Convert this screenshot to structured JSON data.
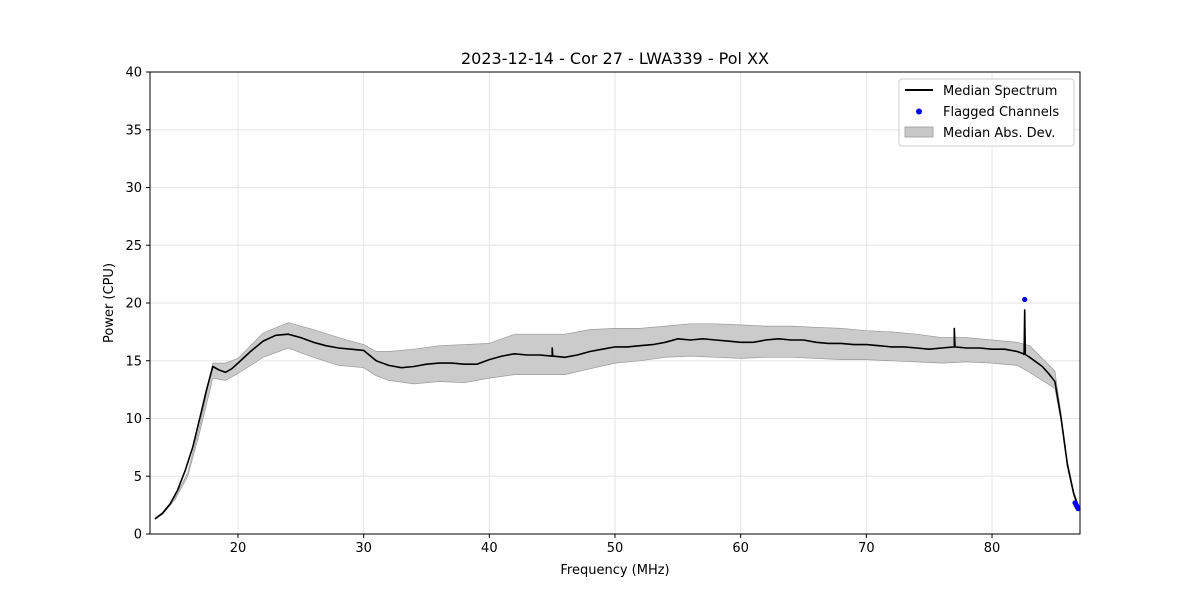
{
  "chart_data": {
    "type": "line",
    "title": "2023-12-14 - Cor 27 - LWA339 - Pol XX",
    "xlabel": "Frequency (MHz)",
    "ylabel": "Power (CPU)",
    "xlim": [
      13,
      87
    ],
    "ylim": [
      0,
      40
    ],
    "xticks": [
      20,
      30,
      40,
      50,
      60,
      70,
      80
    ],
    "yticks": [
      0,
      5,
      10,
      15,
      20,
      25,
      30,
      35,
      40
    ],
    "grid": true,
    "legend_position": "top-right",
    "colors": {
      "median": "#000000",
      "flagged": "#0000ff",
      "mad_fill": "#c8c8c8",
      "mad_edge": "#9a9a9a"
    },
    "series": [
      {
        "name": "Median Spectrum",
        "kind": "line",
        "x": [
          13.4,
          14.0,
          14.6,
          15.2,
          15.8,
          16.4,
          17.0,
          17.5,
          18.0,
          18.5,
          19.0,
          19.5,
          20.0,
          21.0,
          22.0,
          23.0,
          24.0,
          25.0,
          26.0,
          27.0,
          28.0,
          29.0,
          30.0,
          31.0,
          32.0,
          33.0,
          34.0,
          35.0,
          36.0,
          37.0,
          38.0,
          39.0,
          40.0,
          41.0,
          42.0,
          43.0,
          44.0,
          45.0,
          46.0,
          47.0,
          48.0,
          49.0,
          50.0,
          51.0,
          52.0,
          53.0,
          54.0,
          55.0,
          56.0,
          57.0,
          58.0,
          59.0,
          60.0,
          61.0,
          62.0,
          63.0,
          64.0,
          65.0,
          66.0,
          67.0,
          68.0,
          69.0,
          70.0,
          71.0,
          72.0,
          73.0,
          74.0,
          75.0,
          76.0,
          77.0,
          78.0,
          79.0,
          80.0,
          81.0,
          82.0,
          82.5,
          83.0,
          84.0,
          84.5,
          85.0,
          85.5,
          86.0,
          86.5,
          86.9
        ],
        "y": [
          1.3,
          1.8,
          2.6,
          3.8,
          5.5,
          7.5,
          10.2,
          12.5,
          14.5,
          14.2,
          14.0,
          14.3,
          14.8,
          15.8,
          16.7,
          17.2,
          17.3,
          17.0,
          16.6,
          16.3,
          16.1,
          16.0,
          15.9,
          15.0,
          14.6,
          14.4,
          14.5,
          14.7,
          14.8,
          14.8,
          14.7,
          14.7,
          15.1,
          15.4,
          15.6,
          15.5,
          15.5,
          15.4,
          15.3,
          15.5,
          15.8,
          16.0,
          16.2,
          16.2,
          16.3,
          16.4,
          16.6,
          16.9,
          16.8,
          16.9,
          16.8,
          16.7,
          16.6,
          16.6,
          16.8,
          16.9,
          16.8,
          16.8,
          16.6,
          16.5,
          16.5,
          16.4,
          16.4,
          16.3,
          16.2,
          16.2,
          16.1,
          16.0,
          16.1,
          16.2,
          16.1,
          16.1,
          16.0,
          16.0,
          15.8,
          15.6,
          15.3,
          14.5,
          13.9,
          13.2,
          10.0,
          6.0,
          3.5,
          2.3
        ]
      },
      {
        "name": "Flagged Channels",
        "kind": "scatter",
        "x": [
          82.6,
          86.6,
          86.7,
          86.75,
          86.8,
          86.85
        ],
        "y": [
          20.3,
          2.7,
          2.5,
          2.4,
          2.3,
          2.2
        ]
      },
      {
        "name": "Median Abs. Dev.",
        "kind": "band",
        "x": [
          13.4,
          14.0,
          15.0,
          16.0,
          17.0,
          18.0,
          19.0,
          20.0,
          22.0,
          24.0,
          26.0,
          28.0,
          30.0,
          31.0,
          32.0,
          34.0,
          36.0,
          38.0,
          40.0,
          42.0,
          44.0,
          46.0,
          48.0,
          50.0,
          52.0,
          54.0,
          56.0,
          58.0,
          60.0,
          62.0,
          64.0,
          66.0,
          68.0,
          70.0,
          72.0,
          74.0,
          76.0,
          78.0,
          80.0,
          82.0,
          83.0,
          84.0,
          85.0,
          85.5,
          86.0,
          86.5,
          86.9
        ],
        "lower": [
          1.3,
          1.7,
          3.0,
          5.0,
          9.0,
          13.5,
          13.3,
          13.9,
          15.3,
          16.1,
          15.3,
          14.6,
          14.4,
          13.7,
          13.3,
          13.0,
          13.2,
          13.1,
          13.5,
          13.8,
          13.8,
          13.8,
          14.3,
          14.8,
          15.0,
          15.3,
          15.4,
          15.3,
          15.2,
          15.3,
          15.3,
          15.2,
          15.1,
          15.1,
          15.0,
          14.9,
          14.8,
          14.9,
          14.8,
          14.6,
          14.0,
          13.3,
          12.6,
          9.8,
          5.8,
          3.3,
          2.1
        ],
        "upper": [
          1.4,
          1.9,
          3.2,
          5.3,
          9.6,
          14.8,
          14.8,
          15.2,
          17.4,
          18.3,
          17.7,
          17.0,
          16.4,
          15.8,
          15.8,
          16.0,
          16.3,
          16.4,
          16.5,
          17.3,
          17.3,
          17.3,
          17.7,
          17.8,
          17.8,
          18.0,
          18.2,
          18.2,
          18.1,
          18.0,
          18.0,
          17.9,
          17.8,
          17.6,
          17.5,
          17.3,
          17.0,
          17.0,
          16.8,
          16.6,
          16.3,
          15.2,
          14.1,
          10.4,
          6.3,
          3.7,
          2.4
        ]
      }
    ],
    "spikes": [
      {
        "x": 45.0,
        "y": 16.1
      },
      {
        "x": 77.0,
        "y": 17.8
      },
      {
        "x": 82.6,
        "y": 19.4
      }
    ]
  }
}
